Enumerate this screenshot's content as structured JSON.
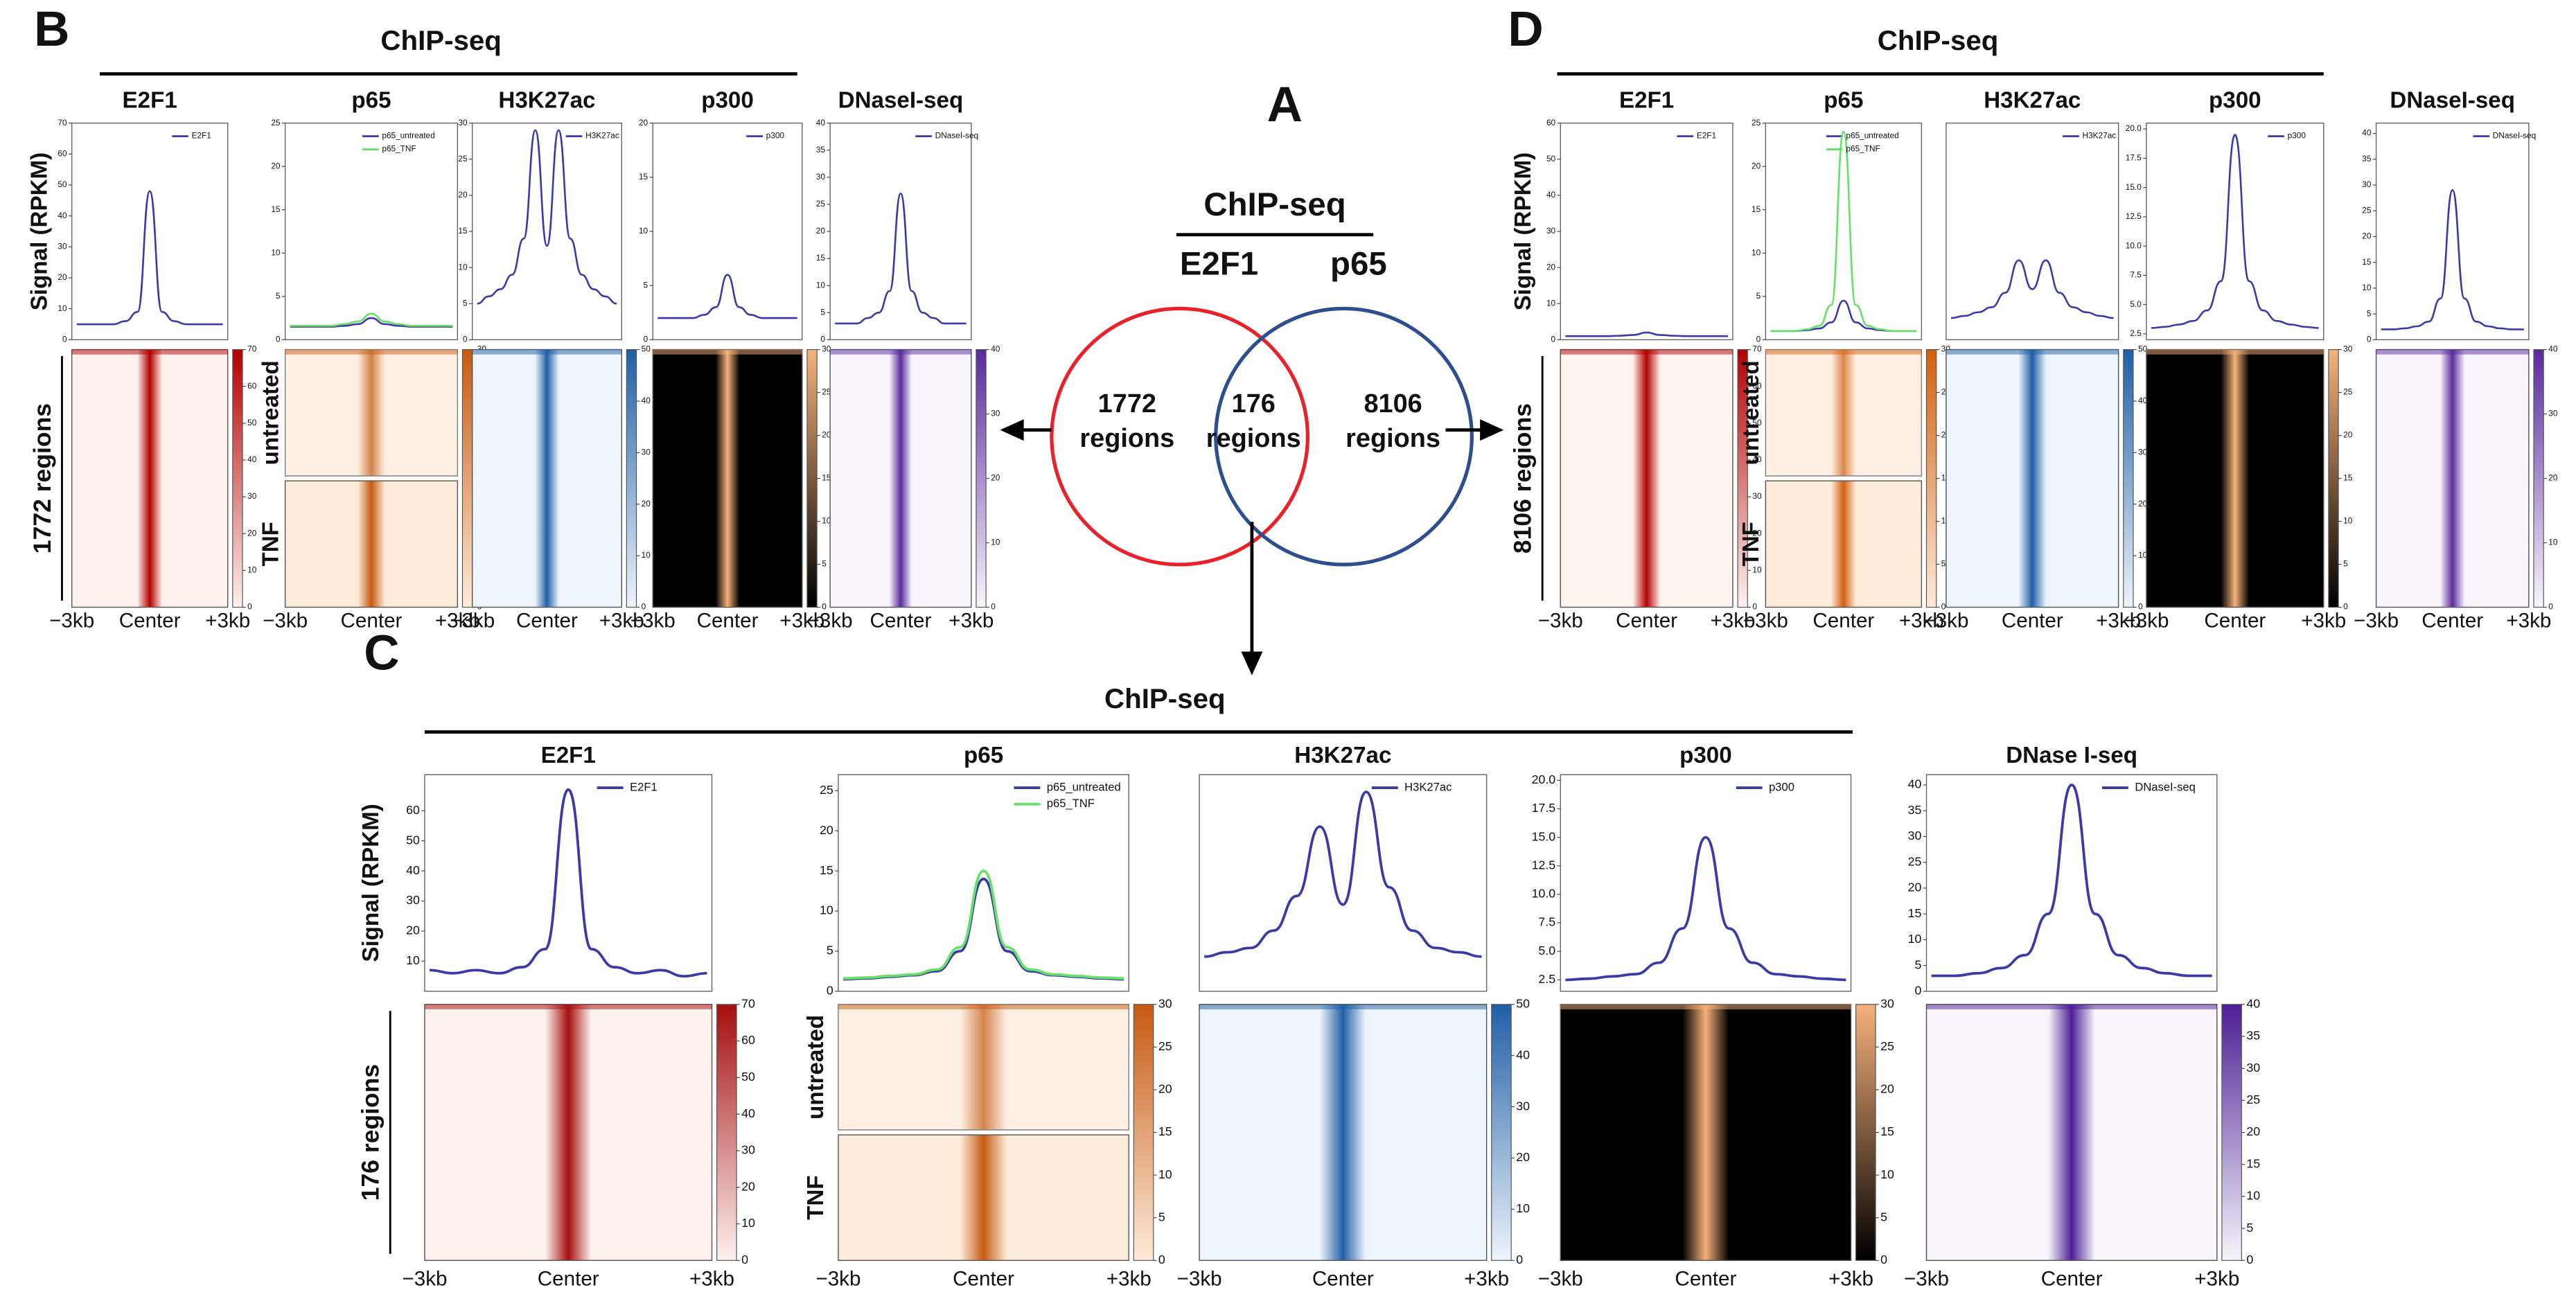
{
  "panel_a": {
    "label": "A",
    "title": "ChIP-seq",
    "set_names": [
      "E2F1",
      "p65"
    ],
    "regions": [
      {
        "count": 1772,
        "label": "regions"
      },
      {
        "count": 176,
        "label": "regions"
      },
      {
        "count": 8106,
        "label": "regions"
      }
    ]
  },
  "panel_b": {
    "label": "B",
    "title": "ChIP-seq",
    "y_label": "Signal (RPKM)",
    "row_label": "1772  regions",
    "groups": [
      "untreated",
      "TNF"
    ],
    "x_ticks": [
      "−3kb",
      "Center",
      "+3kb"
    ],
    "tracks": [
      {
        "name": "E2F1",
        "ylim": [
          0,
          70
        ],
        "yticks": [
          0,
          10,
          20,
          30,
          40,
          50,
          60,
          70
        ],
        "heatmap_colors": [
          "#fdf1ee",
          "#b30000"
        ],
        "colorbar_ticks": [
          0,
          10,
          20,
          30,
          40,
          50,
          60,
          70
        ],
        "series": [
          {
            "name": "E2F1",
            "color": "#3b3ba8",
            "values": [
              5,
              5,
              5,
              5,
              6,
              9,
              48,
              9,
              6,
              5,
              5,
              5,
              5
            ]
          }
        ]
      },
      {
        "name": "p65",
        "ylim": [
          0,
          25
        ],
        "yticks": [
          0,
          5,
          10,
          15,
          20,
          25
        ],
        "heatmap_colors": [
          "#fdebd9",
          "#c65a11"
        ],
        "colorbar_ticks": [
          0,
          5,
          10,
          15,
          20,
          25,
          30
        ],
        "series": [
          {
            "name": "p65_untreated",
            "color": "#3b3ba8",
            "values": [
              1.5,
              1.5,
              1.5,
              1.5,
              1.6,
              1.8,
              2.5,
              1.8,
              1.6,
              1.5,
              1.5,
              1.5,
              1.5
            ]
          },
          {
            "name": "p65_TNF",
            "color": "#66e066",
            "values": [
              1.6,
              1.6,
              1.6,
              1.6,
              1.8,
              2.1,
              3,
              2.1,
              1.8,
              1.6,
              1.6,
              1.6,
              1.6
            ]
          }
        ]
      },
      {
        "name": "H3K27ac",
        "ylim": [
          0,
          30
        ],
        "yticks": [
          0,
          5,
          10,
          15,
          20,
          25,
          30
        ],
        "heatmap_colors": [
          "#eef4fb",
          "#1f5fa6"
        ],
        "colorbar_ticks": [
          0,
          10,
          20,
          30,
          40,
          50
        ],
        "series": [
          {
            "name": "H3K27ac",
            "color": "#3b3ba8",
            "values": [
              5,
              6,
              7,
              9,
              14,
              29,
              13,
              29,
              14,
              9,
              7,
              6,
              5
            ]
          }
        ]
      },
      {
        "name": "p300",
        "ylim": [
          0,
          20
        ],
        "yticks": [
          0,
          5,
          10,
          15,
          20
        ],
        "heatmap_colors": [
          "#000000",
          "#f6b27a"
        ],
        "colorbar_ticks": [
          0,
          5,
          10,
          15,
          20,
          25,
          30
        ],
        "series": [
          {
            "name": "p300",
            "color": "#3b3ba8",
            "values": [
              2,
              2,
              2,
              2,
              2.3,
              3,
              6,
              3,
              2.3,
              2,
              2,
              2,
              2
            ]
          }
        ]
      },
      {
        "name": "DNaseI-seq",
        "ylim": [
          0,
          40
        ],
        "yticks": [
          0,
          5,
          10,
          15,
          20,
          25,
          30,
          35,
          40
        ],
        "heatmap_colors": [
          "#f7f5fb",
          "#5b2a9e"
        ],
        "colorbar_ticks": [
          0,
          10,
          20,
          30,
          40
        ],
        "series": [
          {
            "name": "DNaseI-seq",
            "color": "#3b3ba8",
            "values": [
              3,
              3,
              3,
              4,
              5,
              9,
              27,
              9,
              5,
              4,
              3,
              3,
              3
            ]
          }
        ]
      }
    ]
  },
  "panel_c": {
    "label": "C",
    "title": "ChIP-seq",
    "y_label": "Signal (RPKM)",
    "row_label": "176 regions",
    "groups": [
      "untreated",
      "TNF"
    ],
    "x_ticks": [
      "−3kb",
      "Center",
      "+3kb"
    ],
    "tracks": [
      {
        "name": "E2F1",
        "ylim": [
          0,
          72
        ],
        "yticks": [
          10,
          20,
          30,
          40,
          50,
          60
        ],
        "heatmap_colors": [
          "#fdf1ee",
          "#a50f0f"
        ],
        "colorbar_ticks": [
          0,
          10,
          20,
          30,
          40,
          50,
          60,
          70
        ],
        "series": [
          {
            "name": "E2F1",
            "color": "#3b3ba8",
            "values": [
              7,
              6,
              7,
              6,
              8,
              14,
              67,
              14,
              8,
              6,
              7,
              5,
              6
            ]
          }
        ]
      },
      {
        "name": "p65",
        "ylim": [
          0,
          27
        ],
        "yticks": [
          0,
          5,
          10,
          15,
          20,
          25
        ],
        "heatmap_colors": [
          "#fdebd9",
          "#c65a11"
        ],
        "colorbar_ticks": [
          0,
          5,
          10,
          15,
          20,
          25,
          30
        ],
        "series": [
          {
            "name": "p65_untreated",
            "color": "#3b3ba8",
            "values": [
              1.5,
              1.6,
              1.8,
              2,
              2.5,
              5,
              14,
              5,
              2.5,
              2,
              1.8,
              1.6,
              1.5
            ]
          },
          {
            "name": "p65_TNF",
            "color": "#66e066",
            "values": [
              1.6,
              1.7,
              1.9,
              2.1,
              2.7,
              5.5,
              15,
              5.5,
              2.7,
              2.1,
              1.9,
              1.7,
              1.6
            ]
          }
        ]
      },
      {
        "name": "H3K27ac",
        "ylim": [
          0,
          25
        ],
        "yticks": [],
        "heatmap_colors": [
          "#eef4fb",
          "#1f5fa6"
        ],
        "colorbar_ticks": [
          0,
          10,
          20,
          30,
          40,
          50
        ],
        "series": [
          {
            "name": "H3K27ac",
            "color": "#3b3ba8",
            "values": [
              4,
              4.5,
              5,
              7,
              11,
              19,
              10,
              23,
              12,
              7,
              5,
              4.5,
              4
            ]
          }
        ]
      },
      {
        "name": "p300",
        "ylim": [
          1.5,
          20.5
        ],
        "yticks": [
          {
            "value": 2.5,
            "label": "2.5"
          },
          {
            "value": 5,
            "label": "5.0"
          },
          {
            "value": 7.5,
            "label": "7.5"
          },
          {
            "value": 10,
            "label": "10.0"
          },
          {
            "value": 12.5,
            "label": "12.5"
          },
          {
            "value": 15,
            "label": "15.0"
          },
          {
            "value": 17.5,
            "label": "17.5"
          },
          {
            "value": 20,
            "label": "20.0"
          }
        ],
        "heatmap_colors": [
          "#000000",
          "#f6b27a"
        ],
        "colorbar_ticks": [
          0,
          5,
          10,
          15,
          20,
          25,
          30
        ],
        "series": [
          {
            "name": "p300",
            "color": "#3b3ba8",
            "values": [
              2.5,
              2.6,
              2.8,
              3,
              4,
              7,
              15,
              7,
              4,
              3,
              2.8,
              2.6,
              2.5
            ]
          }
        ]
      },
      {
        "name": "DNase I-seq",
        "ylim": [
          0,
          42
        ],
        "yticks": [
          0,
          5,
          10,
          15,
          20,
          25,
          30,
          35,
          40
        ],
        "heatmap_colors": [
          "#f7f5fb",
          "#4b1f94"
        ],
        "colorbar_ticks": [
          0,
          5,
          10,
          15,
          20,
          25,
          30,
          35,
          40
        ],
        "series": [
          {
            "name": "DNaseI-seq",
            "color": "#3b3ba8",
            "values": [
              3,
              3,
              3.5,
              4.5,
              7,
              15,
              40,
              15,
              7,
              4.5,
              3.5,
              3,
              3
            ]
          }
        ]
      }
    ]
  },
  "panel_d": {
    "label": "D",
    "title": "ChIP-seq",
    "y_label": "Signal (RPKM)",
    "row_label": "8106  regions",
    "groups": [
      "untreated",
      "TNF"
    ],
    "x_ticks": [
      "−3kb",
      "Center",
      "+3kb"
    ],
    "tracks": [
      {
        "name": "E2F1",
        "ylim": [
          0,
          60
        ],
        "yticks": [
          0,
          10,
          20,
          30,
          40,
          50,
          60
        ],
        "heatmap_colors": [
          "#fdf3ef",
          "#b30000"
        ],
        "colorbar_ticks": [
          0,
          10,
          20,
          30,
          40,
          50,
          60,
          70
        ],
        "series": [
          {
            "name": "E2F1",
            "color": "#3b3ba8",
            "values": [
              1,
              1,
              1,
              1,
              1.1,
              1.3,
              2,
              1.3,
              1.1,
              1,
              1,
              1,
              1
            ]
          }
        ]
      },
      {
        "name": "p65",
        "ylim": [
          0,
          25
        ],
        "yticks": [
          0,
          5,
          10,
          15,
          20,
          25
        ],
        "heatmap_colors": [
          "#fdebd9",
          "#d2600f"
        ],
        "colorbar_ticks": [
          0,
          5,
          10,
          15,
          20,
          25,
          30
        ],
        "series": [
          {
            "name": "p65_untreated",
            "color": "#3b3ba8",
            "values": [
              1,
              1,
              1,
              1.1,
              1.3,
              2,
              4.5,
              2,
              1.3,
              1.1,
              1,
              1,
              1
            ]
          },
          {
            "name": "p65_TNF",
            "color": "#66e066",
            "values": [
              1,
              1,
              1,
              1.2,
              1.6,
              4,
              24,
              4,
              1.6,
              1.2,
              1,
              1,
              1
            ]
          }
        ]
      },
      {
        "name": "H3K27ac",
        "ylim": [
          0,
          30
        ],
        "yticks": [],
        "heatmap_colors": [
          "#eef4fb",
          "#1f5fa6"
        ],
        "colorbar_ticks": [
          0,
          10,
          20,
          30,
          40,
          50
        ],
        "series": [
          {
            "name": "H3K27ac",
            "color": "#3b3ba8",
            "values": [
              3,
              3.3,
              3.8,
              4.5,
              6.5,
              11,
              7,
              11,
              6.5,
              4.5,
              3.8,
              3.3,
              3
            ]
          }
        ]
      },
      {
        "name": "p300",
        "ylim": [
          2,
          20.5
        ],
        "yticks": [
          {
            "value": 2.5,
            "label": "2.5"
          },
          {
            "value": 5,
            "label": "5.0"
          },
          {
            "value": 7.5,
            "label": "7.5"
          },
          {
            "value": 10,
            "label": "10.0"
          },
          {
            "value": 12.5,
            "label": "12.5"
          },
          {
            "value": 15,
            "label": "15.0"
          },
          {
            "value": 17.5,
            "label": "17.5"
          },
          {
            "value": 20,
            "label": "20.0"
          }
        ],
        "heatmap_colors": [
          "#000000",
          "#f6b27a"
        ],
        "colorbar_ticks": [
          0,
          5,
          10,
          15,
          20,
          25,
          30
        ],
        "series": [
          {
            "name": "p300",
            "color": "#3b3ba8",
            "values": [
              3,
              3.1,
              3.3,
              3.6,
              4.5,
              7,
              19.5,
              7,
              4.5,
              3.6,
              3.3,
              3.1,
              3
            ]
          }
        ]
      },
      {
        "name": "DNaseI-seq",
        "ylim": [
          0,
          42
        ],
        "yticks": [
          0,
          5,
          10,
          15,
          20,
          25,
          30,
          35,
          40
        ],
        "heatmap_colors": [
          "#f7f5fb",
          "#5b2a9e"
        ],
        "colorbar_ticks": [
          0,
          10,
          20,
          30,
          40
        ],
        "series": [
          {
            "name": "DNaseI-seq",
            "color": "#3b3ba8",
            "values": [
              2,
              2,
              2.2,
              2.6,
              3.5,
              8,
              29,
              8,
              3.5,
              2.6,
              2.2,
              2,
              2
            ]
          }
        ]
      }
    ]
  }
}
